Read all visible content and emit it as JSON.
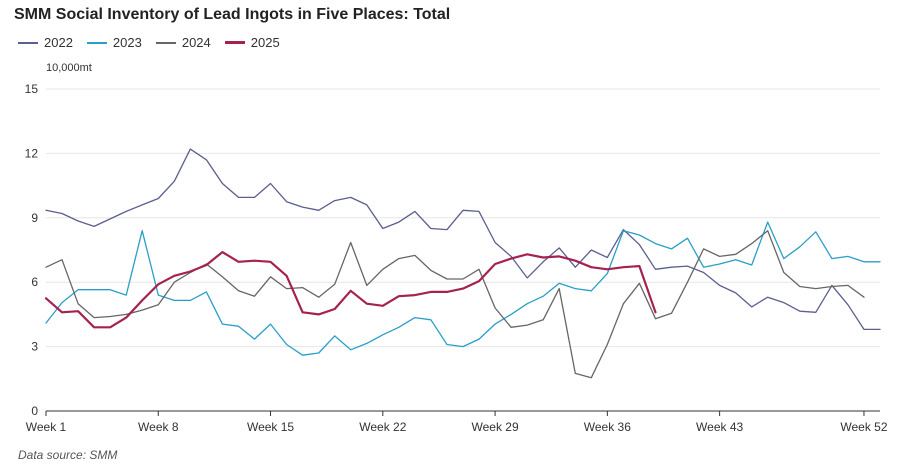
{
  "chart_data": {
    "type": "line",
    "title": "SMM Social Inventory of Lead Ingots in Five Places: Total",
    "ylabel": "10,000mt",
    "ylim": [
      0,
      15
    ],
    "yticks": [
      0,
      3,
      6,
      9,
      12,
      15
    ],
    "xlim": [
      1,
      53
    ],
    "xticks": [
      1,
      8,
      15,
      22,
      29,
      36,
      43,
      52
    ],
    "xtick_labels": [
      "Week 1",
      "Week 8",
      "Week 15",
      "Week 22",
      "Week 29",
      "Week 36",
      "Week 43",
      "Week 52"
    ],
    "grid": true,
    "legend_position": "top-left",
    "source": "Data source:  SMM",
    "series": [
      {
        "name": "2022",
        "color": "#5b5f8f",
        "width": 1.3,
        "x": [
          1,
          2,
          3,
          4,
          5,
          6,
          7,
          8,
          9,
          10,
          11,
          12,
          13,
          14,
          15,
          16,
          17,
          18,
          19,
          20,
          21,
          22,
          23,
          24,
          25,
          26,
          27,
          28,
          29,
          30,
          31,
          32,
          33,
          34,
          35,
          36,
          37,
          38,
          39,
          40,
          41,
          42,
          43,
          44,
          45,
          46,
          47,
          48,
          49,
          50,
          51,
          52,
          53
        ],
        "y": [
          9.35,
          9.2,
          8.85,
          8.6,
          8.95,
          9.3,
          9.6,
          9.9,
          10.7,
          12.2,
          11.7,
          10.6,
          9.95,
          9.95,
          10.6,
          9.75,
          9.5,
          9.35,
          9.8,
          9.95,
          9.6,
          8.5,
          8.8,
          9.3,
          8.5,
          8.45,
          9.35,
          9.3,
          7.85,
          7.2,
          6.2,
          6.95,
          7.6,
          6.7,
          7.5,
          7.15,
          8.45,
          7.75,
          6.6,
          6.7,
          6.75,
          6.45,
          5.85,
          5.5,
          4.85,
          5.3,
          5.05,
          4.65,
          4.6,
          5.85,
          4.95,
          3.8,
          3.8
        ]
      },
      {
        "name": "2023",
        "color": "#2a9ec9",
        "width": 1.3,
        "x": [
          1,
          2,
          3,
          4,
          5,
          6,
          7,
          8,
          9,
          10,
          11,
          12,
          13,
          14,
          15,
          16,
          17,
          18,
          19,
          20,
          21,
          22,
          23,
          24,
          25,
          26,
          27,
          28,
          29,
          30,
          31,
          32,
          33,
          34,
          35,
          36,
          37,
          38,
          39,
          40,
          41,
          42,
          43,
          44,
          45,
          46,
          47,
          48,
          49,
          50,
          51,
          52,
          53
        ],
        "y": [
          4.1,
          5.05,
          5.65,
          5.65,
          5.65,
          5.4,
          8.4,
          5.4,
          5.15,
          5.15,
          5.55,
          4.05,
          3.95,
          3.35,
          4.05,
          3.1,
          2.6,
          2.7,
          3.5,
          2.85,
          3.15,
          3.55,
          3.9,
          4.35,
          4.25,
          3.1,
          3.0,
          3.35,
          4.05,
          4.5,
          5.0,
          5.35,
          5.95,
          5.7,
          5.6,
          6.4,
          8.4,
          8.2,
          7.8,
          7.55,
          8.05,
          6.7,
          6.85,
          7.05,
          6.8,
          8.8,
          7.1,
          7.65,
          8.35,
          7.1,
          7.2,
          6.95,
          6.95
        ]
      },
      {
        "name": "2024",
        "color": "#666666",
        "width": 1.3,
        "x": [
          1,
          2,
          3,
          4,
          5,
          6,
          7,
          8,
          9,
          10,
          11,
          12,
          13,
          14,
          15,
          16,
          17,
          18,
          19,
          20,
          21,
          22,
          23,
          24,
          25,
          26,
          27,
          28,
          29,
          30,
          31,
          32,
          33,
          34,
          35,
          36,
          37,
          38,
          39,
          40,
          41,
          42,
          43,
          44,
          45,
          46,
          47,
          48,
          49,
          50,
          51,
          52
        ],
        "y": [
          6.7,
          7.05,
          5.0,
          4.35,
          4.4,
          4.5,
          4.7,
          4.95,
          6.0,
          6.45,
          6.85,
          6.25,
          5.6,
          5.35,
          6.25,
          5.7,
          5.75,
          5.3,
          5.9,
          7.85,
          5.85,
          6.6,
          7.1,
          7.25,
          6.55,
          6.15,
          6.15,
          6.6,
          4.8,
          3.9,
          4.0,
          4.25,
          5.7,
          1.75,
          1.55,
          3.1,
          5.0,
          5.95,
          4.3,
          4.55,
          6.0,
          7.55,
          7.2,
          7.3,
          7.8,
          8.4,
          6.45,
          5.8,
          5.7,
          5.8,
          5.85,
          5.3
        ]
      },
      {
        "name": "2025",
        "color": "#a52150",
        "width": 2.2,
        "x": [
          1,
          2,
          3,
          4,
          5,
          6,
          7,
          8,
          9,
          10,
          11,
          12,
          13,
          14,
          15,
          16,
          17,
          18,
          19,
          20,
          21,
          22,
          23,
          24,
          25,
          26,
          27,
          28,
          29,
          30,
          31,
          32,
          33,
          34,
          35,
          36,
          37,
          38,
          39
        ],
        "y": [
          5.25,
          4.6,
          4.65,
          3.9,
          3.9,
          4.35,
          5.15,
          5.9,
          6.3,
          6.5,
          6.8,
          7.4,
          6.95,
          7.0,
          6.95,
          6.3,
          4.6,
          4.5,
          4.75,
          5.6,
          5.0,
          4.9,
          5.35,
          5.4,
          5.55,
          5.55,
          5.7,
          6.05,
          6.85,
          7.1,
          7.3,
          7.15,
          7.2,
          7.0,
          6.7,
          6.6,
          6.7,
          6.75,
          4.6
        ]
      }
    ]
  }
}
